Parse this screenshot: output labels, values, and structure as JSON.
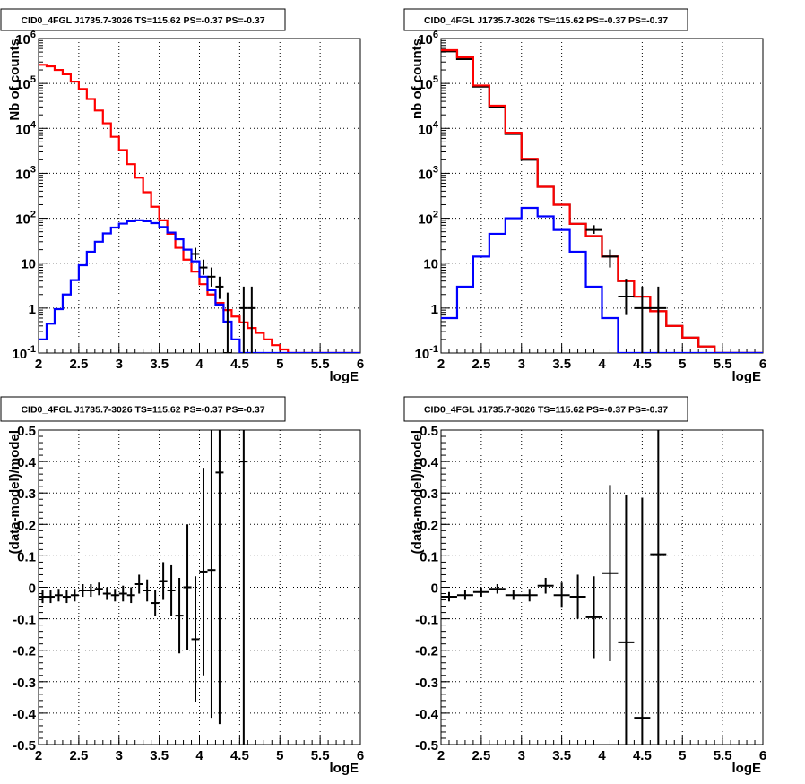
{
  "chart_data": [
    {
      "type": "line",
      "title": "CID0_4FGL J1735.7-3026 TS=115.62 PS=-0.37 PS=-0.37",
      "xlabel": "logE",
      "ylabel": "Nb of counts",
      "xlim": [
        2,
        6
      ],
      "ylim": [
        0.1,
        1000000
      ],
      "yscale": "log",
      "grid": true,
      "x_ticks": [
        "2",
        "2.5",
        "3",
        "3.5",
        "4",
        "4.5",
        "5",
        "5.5",
        "6"
      ],
      "y_ticks": [
        "10^-1",
        "1",
        "10",
        "10^2",
        "10^3",
        "10^4",
        "10^5",
        "10^6"
      ],
      "bin_edges": [
        2.0,
        2.1,
        2.2,
        2.3,
        2.4,
        2.5,
        2.6,
        2.7,
        2.8,
        2.9,
        3.0,
        3.1,
        3.2,
        3.3,
        3.4,
        3.5,
        3.6,
        3.7,
        3.8,
        3.9,
        4.0,
        4.1,
        4.2,
        4.3,
        4.4,
        4.5,
        4.6,
        4.7,
        4.8,
        4.9,
        5.0,
        5.1,
        5.2,
        5.3,
        5.4,
        5.5,
        5.6,
        5.7,
        5.8,
        5.9,
        6.0
      ],
      "series": [
        {
          "color": "#ff0000",
          "kind": "step",
          "values": [
            260000,
            240000,
            200000,
            160000,
            110000,
            75000,
            45000,
            25000,
            13000,
            6500,
            3300,
            1600,
            800,
            380,
            180,
            90,
            45,
            22,
            12,
            6.5,
            3.4,
            2.0,
            1.3,
            0.9,
            0.65,
            0.48,
            0.36,
            0.28,
            0.2,
            0.15,
            0.12,
            0.1,
            0.1,
            0.1,
            0.1,
            0.1,
            0.1,
            0.1,
            0.1,
            0.1
          ]
        },
        {
          "color": "#0000ff",
          "kind": "step",
          "values": [
            0.2,
            0.45,
            0.95,
            2.0,
            4.2,
            9.0,
            18,
            30,
            46,
            62,
            76,
            86,
            90,
            86,
            78,
            64,
            48,
            34,
            20,
            11,
            5.0,
            2.5,
            1.2,
            0.5,
            0.2,
            0.1,
            0.1,
            0.1,
            0.1,
            0.1,
            0.1,
            0.1,
            0.1,
            0.1,
            0.1,
            0.1,
            0.1,
            0.1,
            0.1,
            0.1
          ]
        },
        {
          "color": "#000000",
          "kind": "errorbar",
          "x": [
            3.95,
            4.05,
            4.15,
            4.25,
            4.35,
            4.55,
            4.65
          ],
          "y": [
            16,
            8,
            5,
            3,
            0.1,
            1,
            1
          ],
          "y_low": [
            12,
            5.5,
            3,
            1.6,
            0.1,
            0.1,
            0.1
          ],
          "y_high": [
            22,
            12,
            8,
            5,
            2.2,
            3,
            3
          ]
        }
      ]
    },
    {
      "type": "line",
      "title": "CID0_4FGL J1735.7-3026 TS=115.62 PS=-0.37 PS=-0.37",
      "xlabel": "logE",
      "ylabel": "nb of counts",
      "xlim": [
        2,
        6
      ],
      "ylim": [
        0.1,
        1000000
      ],
      "yscale": "log",
      "grid": true,
      "x_ticks": [
        "2",
        "2.5",
        "3",
        "3.5",
        "4",
        "4.5",
        "5",
        "5.5",
        "6"
      ],
      "y_ticks": [
        "10^-1",
        "1",
        "10",
        "10^2",
        "10^3",
        "10^4",
        "10^5",
        "10^6"
      ],
      "bin_edges": [
        2.0,
        2.2,
        2.4,
        2.6,
        2.8,
        3.0,
        3.2,
        3.4,
        3.6,
        3.8,
        4.0,
        4.2,
        4.4,
        4.6,
        4.8,
        5.0,
        5.2,
        5.4,
        5.6,
        5.8,
        6.0
      ],
      "series": [
        {
          "color": "#000000",
          "kind": "step",
          "values": [
            520000,
            350000,
            85000,
            30000,
            7500,
            2000,
            500,
            200,
            75,
            40,
            14,
            4,
            1.8,
            0.85,
            0.4,
            0.22,
            0.14,
            0.1,
            0.1,
            0.1
          ]
        },
        {
          "color": "#ff0000",
          "kind": "step",
          "values": [
            550000,
            380000,
            90000,
            32000,
            8000,
            2100,
            500,
            200,
            75,
            40,
            14,
            4,
            1.8,
            0.85,
            0.4,
            0.22,
            0.14,
            0.1,
            0.1,
            0.1
          ]
        },
        {
          "color": "#0000ff",
          "kind": "step",
          "values": [
            0.6,
            3,
            14,
            45,
            100,
            170,
            110,
            55,
            18,
            3,
            0.6,
            0.1,
            0.1,
            0.1,
            0.1,
            0.1,
            0.1,
            0.1,
            0.1,
            0.1
          ]
        },
        {
          "color": "#000000",
          "kind": "errorbar",
          "x": [
            3.9,
            4.1,
            4.3,
            4.5,
            4.7
          ],
          "y": [
            55,
            14,
            1.8,
            1,
            1
          ],
          "y_low": [
            45,
            8,
            0.7,
            0.1,
            0.1
          ],
          "y_high": [
            70,
            20,
            4.5,
            3,
            3
          ]
        }
      ]
    },
    {
      "type": "scatter",
      "title": "CID0_4FGL J1735.7-3026 TS=115.62 PS=-0.37 PS=-0.37",
      "xlabel": "logE",
      "ylabel": "(data-model)/model",
      "xlim": [
        2,
        6
      ],
      "ylim": [
        -0.5,
        0.5
      ],
      "grid": true,
      "x_ticks": [
        "2",
        "2.5",
        "3",
        "3.5",
        "4",
        "4.5",
        "5",
        "5.5",
        "6"
      ],
      "y_ticks": [
        "-0.5",
        "-0.4",
        "-0.3",
        "-0.2",
        "-0.1",
        "0",
        "0.1",
        "0.2",
        "0.3",
        "0.4",
        "0.5"
      ],
      "x_half_width": 0.05,
      "series": [
        {
          "color": "#000000",
          "kind": "errorbar",
          "x": [
            2.05,
            2.15,
            2.25,
            2.35,
            2.45,
            2.55,
            2.65,
            2.75,
            2.85,
            2.95,
            3.05,
            3.15,
            3.25,
            3.35,
            3.45,
            3.55,
            3.65,
            3.75,
            3.85,
            3.95,
            4.05,
            4.15,
            4.25,
            4.55
          ],
          "y": [
            -0.03,
            -0.03,
            -0.025,
            -0.03,
            -0.025,
            -0.01,
            -0.01,
            -0.005,
            -0.02,
            -0.025,
            -0.02,
            -0.025,
            0.01,
            -0.01,
            -0.05,
            0.02,
            -0.01,
            -0.09,
            0.0,
            -0.165,
            0.05,
            0.055,
            0.365,
            0.4
          ],
          "err": [
            0.02,
            0.02,
            0.02,
            0.02,
            0.02,
            0.02,
            0.02,
            0.02,
            0.02,
            0.02,
            0.025,
            0.025,
            0.03,
            0.035,
            0.04,
            0.06,
            0.08,
            0.12,
            0.2,
            0.2,
            0.33,
            0.47,
            0.8,
            1.0
          ]
        }
      ]
    },
    {
      "type": "scatter",
      "title": "CID0_4FGL J1735.7-3026 TS=115.62 PS=-0.37 PS=-0.37",
      "xlabel": "logE",
      "ylabel": "(data-model)/model",
      "xlim": [
        2,
        6
      ],
      "ylim": [
        -0.5,
        0.5
      ],
      "grid": true,
      "x_ticks": [
        "2",
        "2.5",
        "3",
        "3.5",
        "4",
        "4.5",
        "5",
        "5.5",
        "6"
      ],
      "y_ticks": [
        "-0.5",
        "-0.4",
        "-0.3",
        "-0.2",
        "-0.1",
        "0",
        "0.1",
        "0.2",
        "0.3",
        "0.4",
        "0.5"
      ],
      "x_half_width": 0.1,
      "series": [
        {
          "color": "#000000",
          "kind": "errorbar",
          "x": [
            2.1,
            2.3,
            2.5,
            2.7,
            2.9,
            3.1,
            3.3,
            3.5,
            3.7,
            3.9,
            4.1,
            4.3,
            4.5,
            4.7
          ],
          "y": [
            -0.03,
            -0.025,
            -0.015,
            -0.005,
            -0.025,
            -0.025,
            0.005,
            -0.025,
            -0.03,
            -0.095,
            0.045,
            -0.175,
            -0.415,
            0.105
          ],
          "err": [
            0.015,
            0.015,
            0.015,
            0.015,
            0.015,
            0.02,
            0.025,
            0.04,
            0.07,
            0.13,
            0.28,
            0.47,
            0.7,
            0.9
          ]
        }
      ]
    }
  ]
}
